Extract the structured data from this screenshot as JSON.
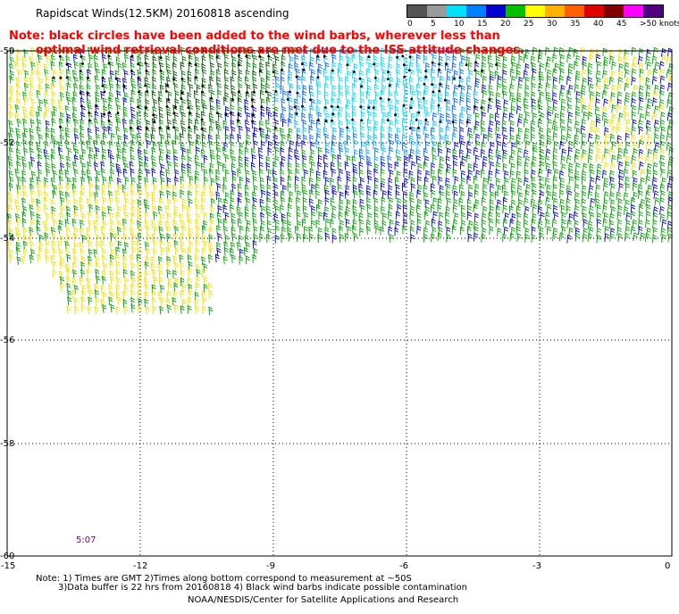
{
  "title": "Rapidscat Winds(12.5KM) 20160818 ascending",
  "note_line1": "Note: black circles have been added to the wind barbs, wherever less than",
  "note_line2": "optimal wind retrieval conditions are met due to the ISS attitude changes.",
  "legend": {
    "labels": [
      "0",
      "5",
      "10",
      "15",
      "20",
      "25",
      "30",
      "35",
      "40",
      "45",
      ">50 knots"
    ],
    "colors": [
      "#555555",
      "#9a9a9a",
      "#00e0ff",
      "#0080ff",
      "#0000d0",
      "#00c000",
      "#ffff00",
      "#ffb000",
      "#ff6000",
      "#e00000",
      "#800000",
      "#ff00ff",
      "#500080"
    ]
  },
  "axes": {
    "lon_labels": [
      "-15",
      "-12",
      "-9",
      "-6",
      "-3",
      "0"
    ],
    "lat_labels": [
      "-50",
      "-52",
      "-54",
      "-56",
      "-58",
      "-60"
    ]
  },
  "timestamp": "5:07",
  "footnote_line1": "Note: 1) Times are GMT 2)Times along bottom correspond to measurement at ~50S",
  "footnote_line2": "3)Data buffer is 22 hrs from 20160818 4) Black wind barbs indicate possible contamination",
  "credit": "NOAA/NESDIS/Center for Satellite Applications and Research"
}
